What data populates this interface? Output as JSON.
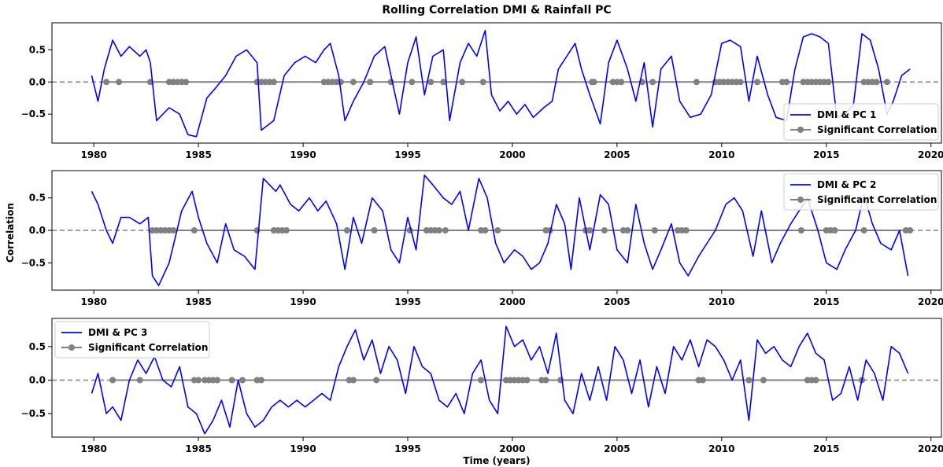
{
  "chart_data": {
    "type": "line",
    "title": "Rolling Correlation DMI & Rainfall PC",
    "xlabel": "Time (years)",
    "ylabel": "Correlation",
    "xlim": [
      1978,
      2020.5
    ],
    "x_ticks": [
      1980,
      1985,
      1990,
      1995,
      2000,
      2005,
      2010,
      2015,
      2020
    ],
    "zero_line": 0,
    "colors": {
      "series": "#0000ff",
      "significant": "#808080",
      "zero_line": "#808080"
    },
    "panels": [
      {
        "ylim": [
          -0.95,
          0.92
        ],
        "y_ticks": [
          -0.5,
          0.0,
          0.5
        ],
        "legend_position": "lower-right",
        "series": [
          {
            "name": "DMI & PC 1",
            "x": [
              1979.9,
              1980.2,
              1980.5,
              1980.9,
              1981.3,
              1981.7,
              1982.2,
              1982.5,
              1982.7,
              1983.0,
              1983.6,
              1984.1,
              1984.5,
              1984.9,
              1985.4,
              1985.8,
              1986.3,
              1986.8,
              1987.3,
              1987.8,
              1988.0,
              1988.6,
              1989.1,
              1989.6,
              1990.1,
              1990.6,
              1991.0,
              1991.3,
              1991.7,
              1992.0,
              1992.4,
              1992.9,
              1993.4,
              1993.9,
              1994.2,
              1994.6,
              1995.0,
              1995.4,
              1995.8,
              1996.2,
              1996.7,
              1997.0,
              1997.5,
              1997.9,
              1998.3,
              1998.7,
              1999.0,
              1999.4,
              1999.8,
              2000.2,
              2000.6,
              2001.0,
              2001.5,
              2001.9,
              2002.2,
              2002.6,
              2003.0,
              2003.3,
              2003.7,
              2004.2,
              2004.6,
              2005.0,
              2005.5,
              2005.9,
              2006.3,
              2006.7,
              2007.1,
              2007.6,
              2008.0,
              2008.5,
              2009.0,
              2009.5,
              2010.0,
              2010.4,
              2010.9,
              2011.3,
              2011.7,
              2012.2,
              2012.6,
              2013.1,
              2013.5,
              2013.9,
              2014.3,
              2014.7,
              2015.1,
              2015.5,
              2015.9,
              2016.3,
              2016.7,
              2017.1,
              2017.5,
              2017.9,
              2018.2,
              2018.6,
              2019.0
            ],
            "y": [
              0.1,
              -0.3,
              0.2,
              0.65,
              0.4,
              0.55,
              0.4,
              0.5,
              0.3,
              -0.6,
              -0.4,
              -0.5,
              -0.82,
              -0.85,
              -0.25,
              -0.1,
              0.1,
              0.4,
              0.5,
              0.3,
              -0.75,
              -0.6,
              0.1,
              0.3,
              0.4,
              0.3,
              0.5,
              0.6,
              0.1,
              -0.6,
              -0.3,
              0.0,
              0.4,
              0.55,
              0.1,
              -0.5,
              0.3,
              0.7,
              -0.2,
              0.4,
              0.5,
              -0.6,
              0.3,
              0.6,
              0.4,
              0.8,
              -0.2,
              -0.45,
              -0.3,
              -0.5,
              -0.35,
              -0.55,
              -0.4,
              -0.3,
              0.2,
              0.4,
              0.6,
              0.2,
              -0.2,
              -0.65,
              0.3,
              0.65,
              0.2,
              -0.3,
              0.3,
              -0.7,
              0.2,
              0.4,
              -0.3,
              -0.55,
              -0.5,
              -0.2,
              0.6,
              0.65,
              0.55,
              -0.3,
              0.4,
              -0.2,
              -0.55,
              -0.6,
              0.2,
              0.7,
              0.75,
              0.7,
              0.6,
              -0.55,
              -0.5,
              -0.35,
              0.75,
              0.65,
              0.2,
              -0.5,
              -0.3,
              0.1,
              0.2
            ]
          },
          {
            "name": "Significant Correlation",
            "x": [
              1980.6,
              1981.2,
              1982.7,
              1983.6,
              1983.8,
              1984.0,
              1984.2,
              1984.4,
              1987.8,
              1988.0,
              1988.2,
              1988.4,
              1988.6,
              1991.0,
              1991.2,
              1991.4,
              1991.6,
              1991.8,
              1992.4,
              1993.2,
              1994.2,
              1995.2,
              1996.1,
              1996.7,
              1997.6,
              1998.6,
              2003.8,
              2003.9,
              2004.8,
              2005.0,
              2005.2,
              2006.2,
              2006.7,
              2008.8,
              2009.7,
              2009.9,
              2010.1,
              2010.3,
              2010.5,
              2010.7,
              2010.9,
              2011.7,
              2012.9,
              2013.1,
              2013.9,
              2014.1,
              2014.3,
              2014.5,
              2014.7,
              2014.9,
              2015.1,
              2016.8,
              2017.0,
              2017.2,
              2017.4,
              2017.9
            ],
            "y_const": 0
          }
        ]
      },
      {
        "ylim": [
          -0.92,
          0.92
        ],
        "y_ticks": [
          -0.5,
          0.0,
          0.5
        ],
        "legend_position": "upper-right",
        "series": [
          {
            "name": "DMI & PC 2",
            "x": [
              1979.9,
              1980.2,
              1980.6,
              1980.9,
              1981.3,
              1981.7,
              1982.2,
              1982.6,
              1982.8,
              1983.1,
              1983.6,
              1984.2,
              1984.7,
              1985.0,
              1985.4,
              1985.9,
              1986.3,
              1986.7,
              1987.2,
              1987.7,
              1988.1,
              1988.7,
              1988.9,
              1989.4,
              1989.8,
              1990.3,
              1990.7,
              1991.1,
              1991.6,
              1992.0,
              1992.4,
              1992.8,
              1993.3,
              1993.8,
              1994.2,
              1994.6,
              1995.0,
              1995.4,
              1995.8,
              1996.2,
              1996.7,
              1997.1,
              1997.5,
              1997.9,
              1998.4,
              1998.8,
              1999.2,
              1999.6,
              2000.1,
              2000.5,
              2000.9,
              2001.3,
              2001.7,
              2002.1,
              2002.5,
              2002.8,
              2003.2,
              2003.7,
              2004.2,
              2004.6,
              2005.0,
              2005.5,
              2005.9,
              2006.3,
              2006.7,
              2007.1,
              2007.6,
              2008.0,
              2008.4,
              2008.9,
              2009.3,
              2009.7,
              2010.2,
              2010.6,
              2011.0,
              2011.5,
              2011.9,
              2012.4,
              2012.8,
              2013.3,
              2013.7,
              2014.1,
              2014.6,
              2015.0,
              2015.5,
              2015.9,
              2016.4,
              2016.8,
              2017.2,
              2017.6,
              2018.1,
              2018.5,
              2018.9
            ],
            "y": [
              0.6,
              0.4,
              0.0,
              -0.2,
              0.2,
              0.2,
              0.1,
              0.2,
              -0.7,
              -0.85,
              -0.5,
              0.3,
              0.6,
              0.2,
              -0.2,
              -0.5,
              0.1,
              -0.3,
              -0.4,
              -0.6,
              0.8,
              0.6,
              0.7,
              0.4,
              0.3,
              0.5,
              0.3,
              0.45,
              0.1,
              -0.6,
              0.2,
              -0.2,
              0.5,
              0.3,
              -0.3,
              -0.5,
              0.2,
              -0.3,
              0.85,
              0.7,
              0.5,
              0.4,
              0.6,
              0.0,
              0.8,
              0.5,
              -0.2,
              -0.5,
              -0.3,
              -0.4,
              -0.6,
              -0.5,
              -0.2,
              0.4,
              0.1,
              -0.6,
              0.5,
              -0.3,
              0.55,
              0.4,
              -0.3,
              -0.5,
              0.4,
              -0.2,
              -0.6,
              -0.3,
              0.1,
              -0.5,
              -0.7,
              -0.4,
              -0.2,
              0.0,
              0.4,
              0.5,
              0.3,
              -0.4,
              0.3,
              -0.5,
              -0.2,
              0.1,
              0.3,
              0.5,
              0.0,
              -0.5,
              -0.6,
              -0.3,
              0.0,
              0.55,
              0.1,
              -0.2,
              -0.3,
              0.0,
              -0.7
            ]
          },
          {
            "name": "Significant Correlation",
            "x": [
              1982.8,
              1983.0,
              1983.2,
              1983.4,
              1983.6,
              1983.8,
              1984.8,
              1987.8,
              1988.6,
              1988.8,
              1989.0,
              1989.2,
              1992.1,
              1993.4,
              1995.1,
              1995.9,
              1996.1,
              1996.3,
              1996.5,
              1996.8,
              1998.5,
              1998.7,
              1999.3,
              2001.6,
              2001.8,
              2003.5,
              2003.7,
              2004.4,
              2005.3,
              2005.5,
              2006.8,
              2007.9,
              2008.1,
              2008.3,
              2013.8,
              2015.0,
              2015.2,
              2015.4,
              2016.8,
              2018.8,
              2019.0
            ],
            "y_const": 0
          }
        ]
      },
      {
        "ylim": [
          -0.85,
          0.92
        ],
        "y_ticks": [
          -0.5,
          0.0,
          0.5
        ],
        "legend_position": "upper-left",
        "series": [
          {
            "name": "DMI & PC 3",
            "x": [
              1979.9,
              1980.2,
              1980.6,
              1980.9,
              1981.3,
              1981.7,
              1982.1,
              1982.5,
              1982.9,
              1983.3,
              1983.7,
              1984.1,
              1984.5,
              1984.9,
              1985.3,
              1985.7,
              1986.1,
              1986.5,
              1986.9,
              1987.3,
              1987.7,
              1988.1,
              1988.5,
              1988.9,
              1989.3,
              1989.7,
              1990.1,
              1990.5,
              1990.9,
              1991.3,
              1991.7,
              1992.1,
              1992.5,
              1992.9,
              1993.3,
              1993.7,
              1994.1,
              1994.5,
              1994.9,
              1995.3,
              1995.7,
              1996.1,
              1996.5,
              1996.9,
              1997.3,
              1997.7,
              1998.1,
              1998.5,
              1998.9,
              1999.3,
              1999.7,
              2000.1,
              2000.5,
              2000.9,
              2001.3,
              2001.7,
              2002.1,
              2002.5,
              2002.9,
              2003.3,
              2003.7,
              2004.1,
              2004.5,
              2004.9,
              2005.3,
              2005.7,
              2006.1,
              2006.5,
              2006.9,
              2007.3,
              2007.7,
              2008.1,
              2008.5,
              2008.9,
              2009.3,
              2009.7,
              2010.1,
              2010.5,
              2010.9,
              2011.3,
              2011.7,
              2012.1,
              2012.5,
              2012.9,
              2013.3,
              2013.7,
              2014.1,
              2014.5,
              2014.9,
              2015.3,
              2015.7,
              2016.1,
              2016.5,
              2016.9,
              2017.3,
              2017.7,
              2018.1,
              2018.5,
              2018.9
            ],
            "y": [
              -0.2,
              0.1,
              -0.5,
              -0.4,
              -0.6,
              0.0,
              0.3,
              0.1,
              0.35,
              0.0,
              -0.1,
              0.2,
              -0.4,
              -0.5,
              -0.8,
              -0.6,
              -0.3,
              -0.7,
              0.0,
              -0.5,
              -0.7,
              -0.6,
              -0.4,
              -0.3,
              -0.4,
              -0.3,
              -0.4,
              -0.3,
              -0.2,
              -0.3,
              0.2,
              0.5,
              0.75,
              0.3,
              0.6,
              0.1,
              0.5,
              0.3,
              -0.2,
              0.5,
              0.2,
              0.1,
              -0.3,
              -0.4,
              -0.2,
              -0.5,
              0.1,
              0.3,
              -0.3,
              -0.5,
              0.8,
              0.5,
              0.6,
              0.3,
              0.5,
              0.1,
              0.7,
              -0.3,
              -0.5,
              0.1,
              -0.3,
              0.2,
              -0.3,
              0.5,
              0.3,
              -0.2,
              0.3,
              -0.4,
              0.2,
              -0.2,
              0.5,
              0.3,
              0.6,
              0.2,
              0.6,
              0.5,
              0.3,
              0.0,
              0.3,
              -0.6,
              0.6,
              0.4,
              0.5,
              0.3,
              0.2,
              0.5,
              0.7,
              0.4,
              0.3,
              -0.3,
              -0.2,
              0.2,
              -0.3,
              0.3,
              0.1,
              -0.3,
              0.5,
              0.4,
              0.1
            ]
          },
          {
            "name": "Significant Correlation",
            "x": [
              1980.9,
              1982.2,
              1984.8,
              1985.0,
              1985.3,
              1985.5,
              1985.7,
              1985.9,
              1986.6,
              1987.1,
              1987.8,
              1988.0,
              1992.2,
              1992.4,
              1993.5,
              1998.5,
              1999.7,
              1999.9,
              2000.1,
              2000.3,
              2000.5,
              2000.7,
              2001.4,
              2001.6,
              2002.3,
              2008.9,
              2009.1,
              2011.3,
              2012.0,
              2014.1,
              2014.3,
              2014.5,
              2016.7
            ],
            "y_const": 0
          }
        ]
      }
    ]
  }
}
